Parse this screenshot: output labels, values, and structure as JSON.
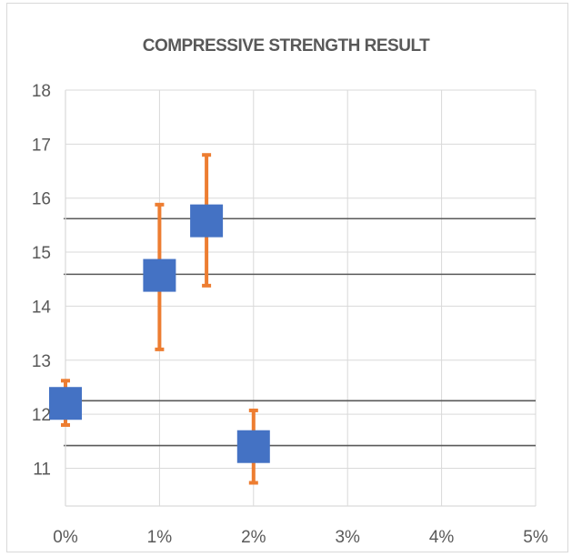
{
  "chart_data": {
    "type": "scatter",
    "title": "COMPRESSIVE STRENGTH RESULT",
    "xlabel": "",
    "ylabel": "",
    "xlim": [
      0,
      5
    ],
    "ylim": [
      10.3,
      18
    ],
    "x_ticks": [
      "0%",
      "1%",
      "2%",
      "3%",
      "4%",
      "5%"
    ],
    "y_ticks": [
      "11",
      "12",
      "13",
      "14",
      "15",
      "16",
      "17",
      "18"
    ],
    "y_tick_values": [
      11,
      12,
      13,
      14,
      15,
      16,
      17,
      18
    ],
    "grid": "vertical",
    "legend": "none",
    "points": [
      {
        "x": 0,
        "y": 12.2,
        "err_low": 11.8,
        "err_high": 12.62
      },
      {
        "x": 1,
        "y": 14.57,
        "err_low": 13.2,
        "err_high": 15.88
      },
      {
        "x": 1.5,
        "y": 15.58,
        "err_low": 14.38,
        "err_high": 16.8
      },
      {
        "x": 2,
        "y": 11.4,
        "err_low": 10.73,
        "err_high": 12.07
      }
    ],
    "reference_lines_y": [
      15.62,
      14.59,
      12.25,
      11.42
    ],
    "colors": {
      "marker": "#4472C4",
      "error_bar": "#ED7D31",
      "reference_line": "#595959",
      "grid": "#d9d9d9",
      "text": "#595959"
    }
  }
}
